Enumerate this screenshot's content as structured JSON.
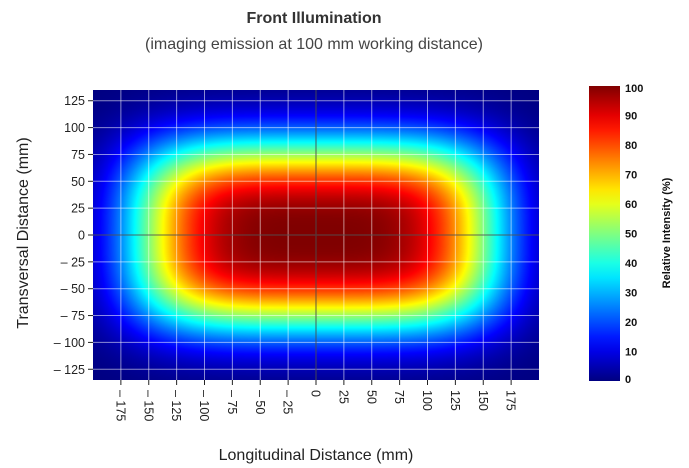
{
  "chart_data": {
    "type": "heatmap",
    "title": "Front Illumination",
    "subtitle": "(imaging emission at 100 mm working distance)",
    "xlabel": "Longitudinal Distance (mm)",
    "ylabel": "Transversal Distance (mm)",
    "colorbar_label": "Relative Intensity (%)",
    "xlim": [
      -200,
      200
    ],
    "ylim": [
      -135,
      135
    ],
    "x_ticks": [
      -175,
      -150,
      -125,
      -100,
      -75,
      -50,
      -25,
      0,
      25,
      50,
      75,
      100,
      125,
      150,
      175
    ],
    "x_tick_labels": [
      "– 175",
      "– 150",
      "– 125",
      "– 100",
      "– 75",
      "– 50",
      "– 25",
      "0",
      "25",
      "50",
      "75",
      "100",
      "125",
      "150",
      "175"
    ],
    "y_ticks": [
      125,
      100,
      75,
      50,
      25,
      0,
      -25,
      -50,
      -75,
      -100,
      -125
    ],
    "y_tick_labels": [
      "125",
      "100",
      "75",
      "50",
      "25",
      "0",
      "– 25",
      "– 50",
      "– 75",
      "– 100",
      "– 125"
    ],
    "colorbar_ticks": [
      100,
      90,
      80,
      70,
      60,
      50,
      40,
      30,
      20,
      10,
      0
    ],
    "colorbar_range": [
      0,
      100
    ],
    "colormap": "jet",
    "grid": true,
    "crosshair_at_origin": true,
    "intensity_model": {
      "shape": "elliptical super-gaussian",
      "center": [
        0,
        0
      ],
      "peak_percent": 100,
      "fifty_percent_half_width_x": 150,
      "fifty_percent_half_width_y": 77,
      "ten_percent_half_width_x": 198,
      "ten_percent_half_width_y": 115
    }
  }
}
